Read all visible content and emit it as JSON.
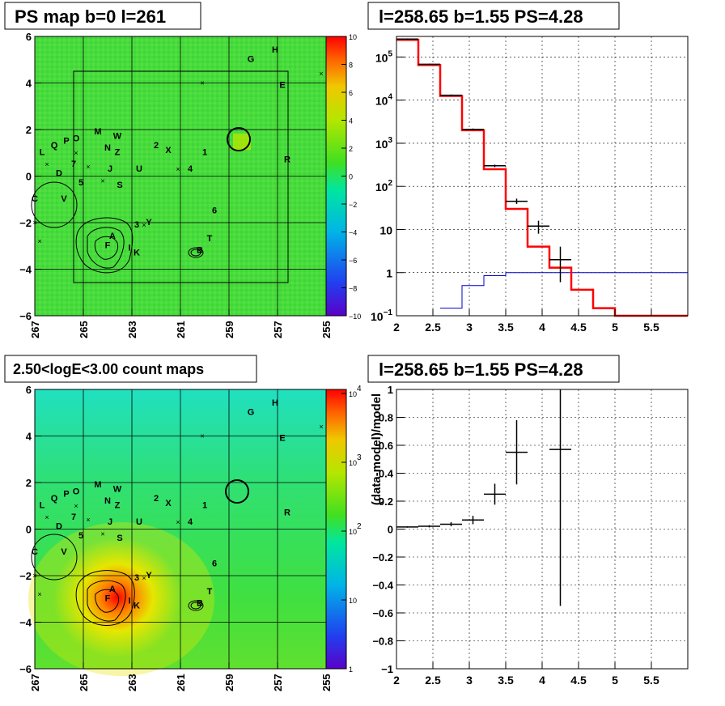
{
  "panels": {
    "ps_map": {
      "title": "PS map b=0 l=261",
      "x_ticks": [
        "267",
        "265",
        "263",
        "261",
        "259",
        "257",
        "255"
      ],
      "y_ticks": [
        "6",
        "4",
        "2",
        "0",
        "−2",
        "−4",
        "−6"
      ],
      "colorbar_ticks": [
        "10",
        "8",
        "6",
        "4",
        "2",
        "0",
        "−2",
        "−4",
        "−6",
        "−8",
        "−10"
      ]
    },
    "spectrum": {
      "title": "l=258.65 b=1.55 PS=4.28",
      "x_ticks": [
        "2",
        "2.5",
        "3",
        "3.5",
        "4",
        "4.5",
        "5",
        "5.5"
      ],
      "y_ticks": [
        "10^5",
        "10^4",
        "10^3",
        "10^2",
        "10",
        "1",
        "10^-1"
      ]
    },
    "count_map": {
      "title": "2.50<logE<3.00 count maps",
      "x_ticks": [
        "267",
        "265",
        "263",
        "261",
        "259",
        "257",
        "255"
      ],
      "y_ticks": [
        "6",
        "4",
        "2",
        "0",
        "−2",
        "−4",
        "−6"
      ],
      "colorbar_ticks": [
        "10^4",
        "10^3",
        "10^2",
        "10",
        "1"
      ]
    },
    "residual": {
      "title": "l=258.65 b=1.55 PS=4.28",
      "ylabel": "(data-model)/model",
      "x_ticks": [
        "2",
        "2.5",
        "3",
        "3.5",
        "4",
        "4.5",
        "5",
        "5.5"
      ],
      "y_ticks": [
        "1",
        "0.8",
        "0.6",
        "0.4",
        "0.2",
        "0",
        "−0.2",
        "−0.4",
        "−0.6",
        "−0.8",
        "−1"
      ]
    }
  },
  "source_labels": [
    {
      "t": "G",
      "l": 258.1,
      "b": 4.9
    },
    {
      "t": "H",
      "l": 257.1,
      "b": 5.3
    },
    {
      "t": "E",
      "l": 256.8,
      "b": 3.8
    },
    {
      "t": "M",
      "l": 264.4,
      "b": 1.8
    },
    {
      "t": "W",
      "l": 263.6,
      "b": 1.6
    },
    {
      "t": "O",
      "l": 265.3,
      "b": 1.5
    },
    {
      "t": "P",
      "l": 265.7,
      "b": 1.4
    },
    {
      "t": "Q",
      "l": 266.2,
      "b": 1.2
    },
    {
      "t": "L",
      "l": 266.7,
      "b": 0.9
    },
    {
      "t": "N",
      "l": 264.0,
      "b": 1.1
    },
    {
      "t": "Z",
      "l": 263.6,
      "b": 0.9
    },
    {
      "t": "2",
      "l": 262.0,
      "b": 1.2
    },
    {
      "t": "X",
      "l": 261.5,
      "b": 1.0
    },
    {
      "t": "1",
      "l": 260.0,
      "b": 0.9
    },
    {
      "t": "R",
      "l": 256.6,
      "b": 0.6
    },
    {
      "t": "7",
      "l": 265.4,
      "b": 0.4
    },
    {
      "t": "J",
      "l": 263.9,
      "b": 0.2
    },
    {
      "t": "U",
      "l": 262.7,
      "b": 0.2
    },
    {
      "t": "4",
      "l": 260.6,
      "b": 0.2
    },
    {
      "t": "D",
      "l": 266.0,
      "b": 0.0
    },
    {
      "t": "5",
      "l": 265.1,
      "b": -0.4
    },
    {
      "t": "S",
      "l": 263.5,
      "b": -0.5
    },
    {
      "t": "C",
      "l": 267.0,
      "b": -1.1
    },
    {
      "t": "V",
      "l": 265.8,
      "b": -1.1
    },
    {
      "t": "6",
      "l": 259.6,
      "b": -1.6
    },
    {
      "t": "3",
      "l": 262.8,
      "b": -2.2
    },
    {
      "t": "Y",
      "l": 262.3,
      "b": -2.1
    },
    {
      "t": "A",
      "l": 263.8,
      "b": -2.7
    },
    {
      "t": "F",
      "l": 264.0,
      "b": -3.1
    },
    {
      "t": "I",
      "l": 263.1,
      "b": -3.2
    },
    {
      "t": "K",
      "l": 262.8,
      "b": -3.4
    },
    {
      "t": "T",
      "l": 259.8,
      "b": -2.8
    },
    {
      "t": "B",
      "l": 260.2,
      "b": -3.3
    }
  ],
  "chart_data": [
    {
      "type": "heatmap",
      "title": "PS map b=0 l=261",
      "xlabel": "",
      "ylabel": "",
      "xlim": [
        267,
        255
      ],
      "ylim": [
        -6,
        6
      ],
      "colorbar_range": [
        -10,
        10
      ],
      "grid": true
    },
    {
      "type": "line",
      "title": "l=258.65 b=1.55 PS=4.28",
      "yscale": "log",
      "xlim": [
        2,
        6
      ],
      "ylim": [
        0.1,
        300000
      ],
      "grid": true,
      "model_steps": [
        {
          "x0": 2.0,
          "x1": 2.3,
          "y": 250000
        },
        {
          "x0": 2.3,
          "x1": 2.6,
          "y": 65000
        },
        {
          "x0": 2.6,
          "x1": 2.9,
          "y": 12500
        },
        {
          "x0": 2.9,
          "x1": 3.2,
          "y": 2000
        },
        {
          "x0": 3.2,
          "x1": 3.5,
          "y": 250
        },
        {
          "x0": 3.5,
          "x1": 3.8,
          "y": 30
        },
        {
          "x0": 3.8,
          "x1": 4.1,
          "y": 4
        },
        {
          "x0": 4.1,
          "x1": 4.4,
          "y": 1.3
        },
        {
          "x0": 4.4,
          "x1": 4.7,
          "y": 0.4
        },
        {
          "x0": 4.7,
          "x1": 5.0,
          "y": 0.15
        },
        {
          "x0": 5.0,
          "x1": 6.0,
          "y": 0.1
        }
      ],
      "source_steps": [
        {
          "x0": 2.6,
          "x1": 2.9,
          "y": 0.15
        },
        {
          "x0": 2.9,
          "x1": 3.2,
          "y": 0.5
        },
        {
          "x0": 3.2,
          "x1": 3.5,
          "y": 0.85
        },
        {
          "x0": 3.5,
          "x1": 6.0,
          "y": 1.0
        }
      ],
      "data_points": [
        {
          "x": 2.15,
          "y": 260000,
          "xe": 0.15,
          "ylo": 250000,
          "yhi": 270000
        },
        {
          "x": 2.45,
          "y": 68000,
          "xe": 0.15,
          "ylo": 66000,
          "yhi": 70000
        },
        {
          "x": 2.75,
          "y": 13000,
          "xe": 0.15,
          "ylo": 12500,
          "yhi": 13500
        },
        {
          "x": 3.05,
          "y": 2100,
          "xe": 0.15,
          "ylo": 2000,
          "yhi": 2200
        },
        {
          "x": 3.35,
          "y": 300,
          "xe": 0.15,
          "ylo": 280,
          "yhi": 320
        },
        {
          "x": 3.65,
          "y": 45,
          "xe": 0.15,
          "ylo": 39,
          "yhi": 52
        },
        {
          "x": 3.95,
          "y": 12,
          "xe": 0.15,
          "ylo": 8,
          "yhi": 16
        },
        {
          "x": 4.25,
          "y": 2,
          "xe": 0.15,
          "ylo": 0.6,
          "yhi": 4
        }
      ]
    },
    {
      "type": "heatmap",
      "title": "2.50<logE<3.00 count maps",
      "xlabel": "",
      "ylabel": "",
      "xlim": [
        267,
        255
      ],
      "ylim": [
        -6,
        6
      ],
      "colorbar_range": [
        1,
        10000
      ],
      "colorbar_scale": "log",
      "grid": true
    },
    {
      "type": "scatter",
      "title": "l=258.65 b=1.55 PS=4.28",
      "ylabel": "(data-model)/model",
      "xlim": [
        2,
        6
      ],
      "ylim": [
        -1,
        1
      ],
      "grid": true,
      "points": [
        {
          "x": 2.15,
          "y": 0.015,
          "xe": 0.15,
          "ye": 0.005
        },
        {
          "x": 2.45,
          "y": 0.02,
          "xe": 0.15,
          "ye": 0.008
        },
        {
          "x": 2.75,
          "y": 0.035,
          "xe": 0.15,
          "ye": 0.015
        },
        {
          "x": 3.05,
          "y": 0.065,
          "xe": 0.15,
          "ye": 0.03
        },
        {
          "x": 3.35,
          "y": 0.25,
          "xe": 0.15,
          "ye": 0.075
        },
        {
          "x": 3.65,
          "y": 0.55,
          "xe": 0.15,
          "ye": 0.23
        },
        {
          "x": 4.25,
          "y": 0.57,
          "xe": 0.15,
          "ye": 1.12
        }
      ]
    }
  ]
}
